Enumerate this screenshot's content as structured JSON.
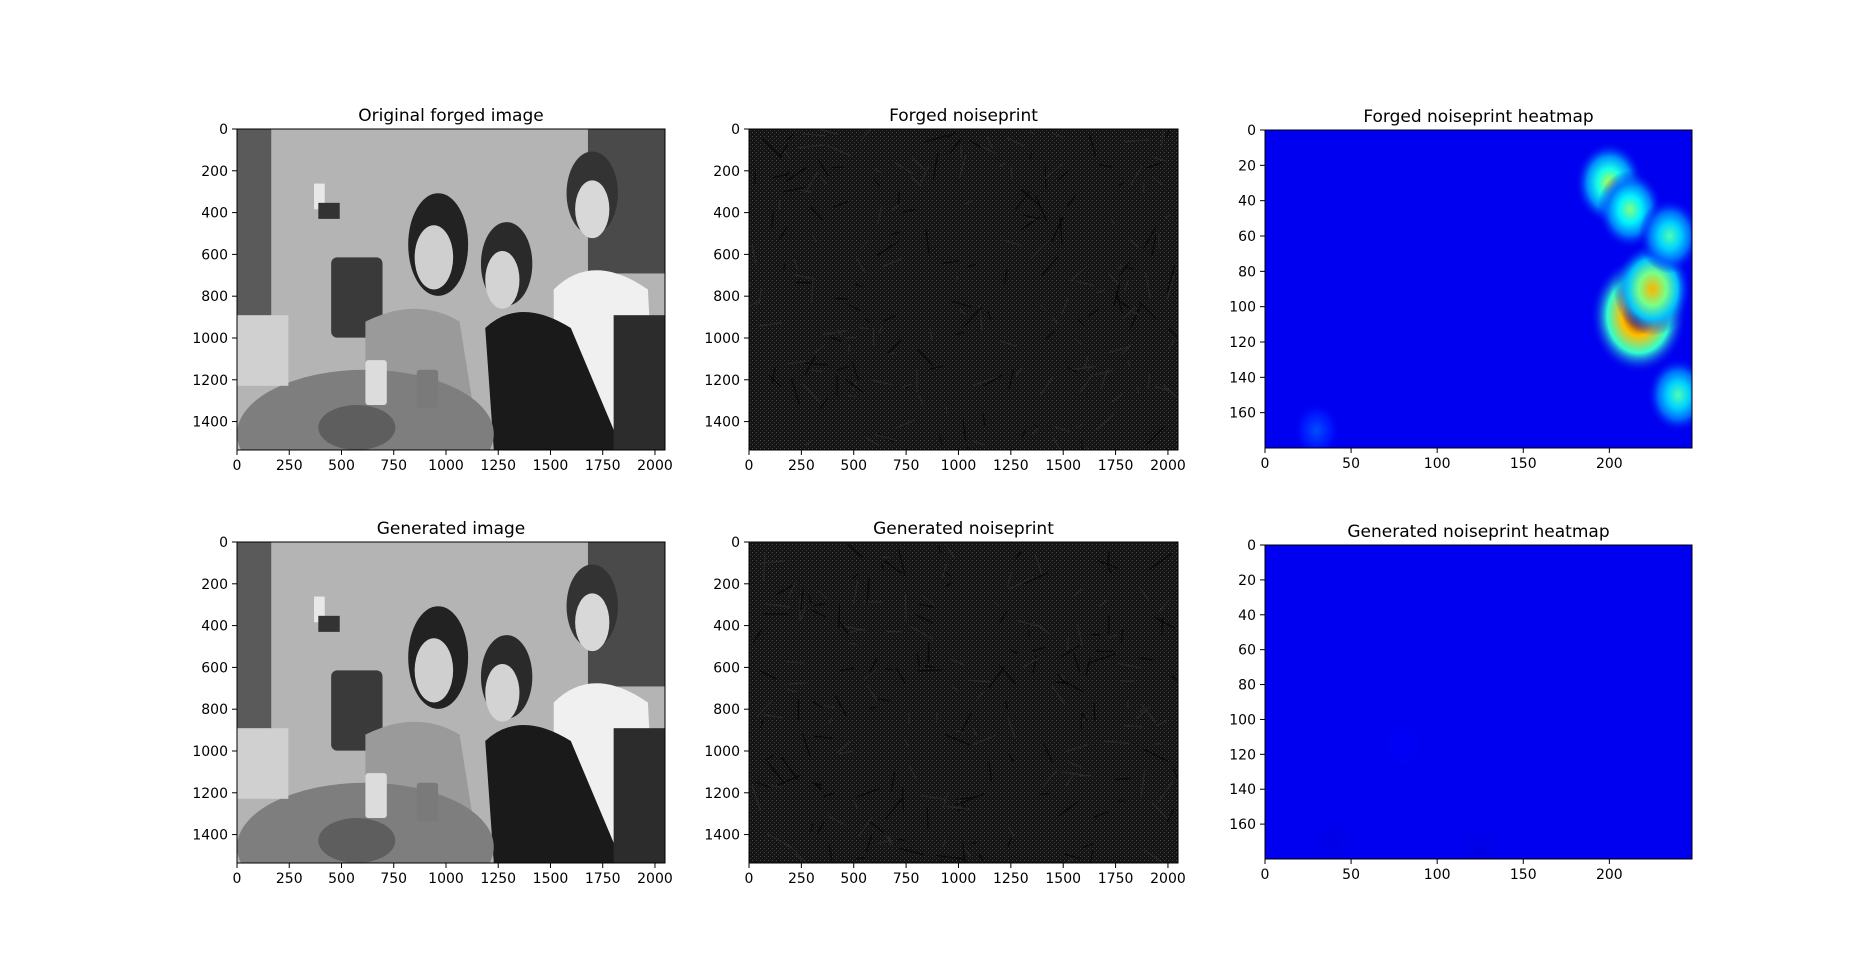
{
  "colors": {
    "background": "#ffffff",
    "axis": "#000000",
    "photo_mid_gray": "#9a9a9a",
    "noise_dark": "#151515",
    "heatmap_low": "#00008c",
    "heatmap_high": "#c00000"
  },
  "chart_data": [
    {
      "type": "image",
      "id": "original",
      "title": "Original forged image",
      "colormap": "gray",
      "image_kind": "photo",
      "xlim": [
        0,
        2048
      ],
      "ylim": [
        1536,
        0
      ],
      "xticks": [
        0,
        250,
        500,
        750,
        1000,
        1250,
        1500,
        1750,
        2000
      ],
      "yticks": [
        0,
        200,
        400,
        600,
        800,
        1000,
        1200,
        1400
      ]
    },
    {
      "type": "image",
      "id": "forged_noise",
      "title": "Forged noiseprint",
      "colormap": "gray",
      "image_kind": "noiseprint",
      "xlim": [
        0,
        2048
      ],
      "ylim": [
        1536,
        0
      ],
      "xticks": [
        0,
        250,
        500,
        750,
        1000,
        1250,
        1500,
        1750,
        2000
      ],
      "yticks": [
        0,
        200,
        400,
        600,
        800,
        1000,
        1200,
        1400
      ]
    },
    {
      "type": "heatmap",
      "id": "forged_heat",
      "title": "Forged noiseprint heatmap",
      "colormap": "jet",
      "xlim": [
        0,
        248
      ],
      "ylim": [
        180,
        0
      ],
      "xticks": [
        0,
        50,
        100,
        150,
        200
      ],
      "yticks": [
        0,
        20,
        40,
        60,
        80,
        100,
        120,
        140,
        160
      ],
      "hotspots": [
        {
          "x": 217,
          "y": 105,
          "intensity": 1.0
        },
        {
          "x": 225,
          "y": 90,
          "intensity": 0.7
        },
        {
          "x": 200,
          "y": 30,
          "intensity": 0.55
        },
        {
          "x": 212,
          "y": 45,
          "intensity": 0.5
        },
        {
          "x": 235,
          "y": 60,
          "intensity": 0.45
        },
        {
          "x": 240,
          "y": 150,
          "intensity": 0.45
        },
        {
          "x": 30,
          "y": 170,
          "intensity": 0.2
        }
      ]
    },
    {
      "type": "image",
      "id": "generated",
      "title": "Generated image",
      "colormap": "gray",
      "image_kind": "photo",
      "xlim": [
        0,
        2048
      ],
      "ylim": [
        1536,
        0
      ],
      "xticks": [
        0,
        250,
        500,
        750,
        1000,
        1250,
        1500,
        1750,
        2000
      ],
      "yticks": [
        0,
        200,
        400,
        600,
        800,
        1000,
        1200,
        1400
      ]
    },
    {
      "type": "image",
      "id": "generated_noise",
      "title": "Generated noiseprint",
      "colormap": "gray",
      "image_kind": "noiseprint",
      "xlim": [
        0,
        2048
      ],
      "ylim": [
        1536,
        0
      ],
      "xticks": [
        0,
        250,
        500,
        750,
        1000,
        1250,
        1500,
        1750,
        2000
      ],
      "yticks": [
        0,
        200,
        400,
        600,
        800,
        1000,
        1200,
        1400
      ]
    },
    {
      "type": "heatmap",
      "id": "generated_heat",
      "title": "Generated noiseprint heatmap",
      "colormap": "jet",
      "xlim": [
        0,
        248
      ],
      "ylim": [
        180,
        0
      ],
      "xticks": [
        0,
        50,
        100,
        150,
        200
      ],
      "yticks": [
        0,
        20,
        40,
        60,
        80,
        100,
        120,
        140,
        160
      ],
      "hotspots": [
        {
          "x": 80,
          "y": 115,
          "intensity": 0.12
        },
        {
          "x": 40,
          "y": 170,
          "intensity": 0.1
        },
        {
          "x": 125,
          "y": 175,
          "intensity": 0.1
        }
      ]
    }
  ]
}
